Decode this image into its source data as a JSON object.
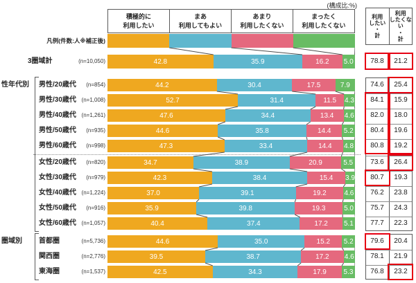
{
  "chart_data": {
    "type": "bar",
    "stacked": true,
    "orientation": "horizontal",
    "xlim": [
      0,
      100
    ],
    "unit_note": "(構成比:%)",
    "legend_row_label": "凡例(件数:人※補正後)",
    "categories": [
      "積極的に\n利用したい",
      "まあ\n利用してもよい",
      "あまり\n利用したくない",
      "まったく\n利用したくない"
    ],
    "series_colors": [
      "#EFA820",
      "#5FB7CE",
      "#E5697E",
      "#68BC64"
    ],
    "bar_label_color": "#FFFFFF",
    "summary_columns": [
      "利用\nしたい\n・\n計",
      "利用\nしたくな\nい\n・\n計"
    ],
    "highlight_color": "#E60012",
    "groups": [
      {
        "label": "",
        "rows": [
          {
            "name": "3圏域計",
            "n": "(n=10,050)",
            "values": [
              "42.8",
              "35.9",
              "16.2",
              "5.0"
            ],
            "totals": [
              "78.8",
              "21.2"
            ]
          }
        ]
      },
      {
        "label": "性年代別",
        "dotted_divider_after": 4,
        "rows": [
          {
            "name": "男性/20歳代",
            "n": "(n=854)",
            "values": [
              "44.2",
              "30.4",
              "17.5",
              "7.9"
            ],
            "totals": [
              "74.6",
              "25.4"
            ]
          },
          {
            "name": "男性/30歳代",
            "n": "(n=1,008)",
            "values": [
              "52.7",
              "31.4",
              "11.5",
              "4.3"
            ],
            "totals": [
              "84.1",
              "15.9"
            ]
          },
          {
            "name": "男性/40歳代",
            "n": "(n=1,261)",
            "values": [
              "47.6",
              "34.4",
              "13.4",
              "4.6"
            ],
            "totals": [
              "82.0",
              "18.0"
            ]
          },
          {
            "name": "男性/50歳代",
            "n": "(n=935)",
            "values": [
              "44.6",
              "35.8",
              "14.4",
              "5.2"
            ],
            "totals": [
              "80.4",
              "19.6"
            ]
          },
          {
            "name": "男性/60歳代",
            "n": "(n=998)",
            "values": [
              "47.3",
              "33.4",
              "14.4",
              "4.8"
            ],
            "totals": [
              "80.8",
              "19.2"
            ]
          },
          {
            "name": "女性/20歳代",
            "n": "(n=820)",
            "values": [
              "34.7",
              "38.9",
              "20.9",
              "5.5"
            ],
            "totals": [
              "73.6",
              "26.4"
            ]
          },
          {
            "name": "女性/30歳代",
            "n": "(n=979)",
            "values": [
              "42.3",
              "38.4",
              "15.4",
              "3.9"
            ],
            "totals": [
              "80.7",
              "19.3"
            ]
          },
          {
            "name": "女性/40歳代",
            "n": "(n=1,224)",
            "values": [
              "37.0",
              "39.1",
              "19.2",
              "4.6"
            ],
            "totals": [
              "76.2",
              "23.8"
            ]
          },
          {
            "name": "女性/50歳代",
            "n": "(n=916)",
            "values": [
              "35.9",
              "39.8",
              "19.3",
              "5.0"
            ],
            "totals": [
              "75.7",
              "24.3"
            ]
          },
          {
            "name": "女性/60歳代",
            "n": "(n=1,057)",
            "values": [
              "40.4",
              "37.4",
              "17.2",
              "5.1"
            ],
            "totals": [
              "77.7",
              "22.3"
            ]
          }
        ]
      },
      {
        "label": "圏域別",
        "rows": [
          {
            "name": "首都圏",
            "n": "(n=5,736)",
            "values": [
              "44.6",
              "35.0",
              "15.2",
              "5.2"
            ],
            "totals": [
              "79.6",
              "20.4"
            ]
          },
          {
            "name": "関西圏",
            "n": "(n=2,776)",
            "values": [
              "39.5",
              "38.7",
              "17.2",
              "4.6"
            ],
            "totals": [
              "78.1",
              "21.9"
            ]
          },
          {
            "name": "東海圏",
            "n": "(n=1,537)",
            "values": [
              "42.5",
              "34.3",
              "17.9",
              "5.3"
            ],
            "totals": [
              "76.8",
              "23.2"
            ]
          }
        ]
      }
    ],
    "highlights": [
      {
        "col": 0,
        "from": 0,
        "to": 0
      },
      {
        "col": 1,
        "from": 0,
        "to": 0
      },
      {
        "col": 1,
        "from": 1,
        "to": 1
      },
      {
        "col": 0,
        "from": 2,
        "to": 5
      },
      {
        "col": 1,
        "from": 2,
        "to": 5
      },
      {
        "col": 1,
        "from": 6,
        "to": 6
      },
      {
        "col": 0,
        "from": 7,
        "to": 7
      },
      {
        "col": 0,
        "from": 11,
        "to": 11
      },
      {
        "col": 1,
        "from": 13,
        "to": 13
      }
    ]
  }
}
